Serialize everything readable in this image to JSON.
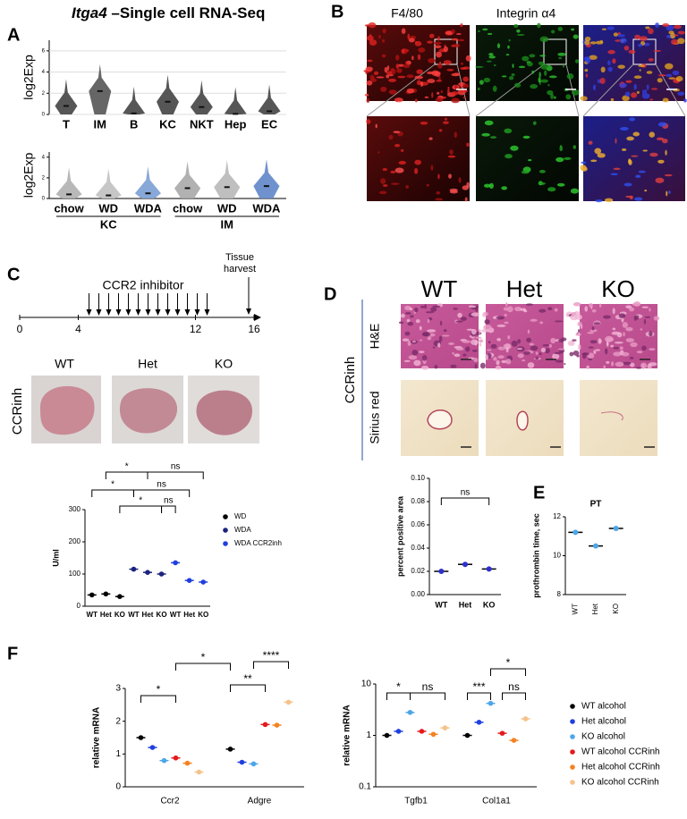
{
  "panel_labels": [
    "A",
    "B",
    "C",
    "D",
    "E",
    "F"
  ],
  "panel_a": {
    "gene": "Itga4",
    "title_rest": " –Single cell RNA-Seq"
  },
  "panel_b": {
    "stains": [
      "F4/80",
      "Integrin α4"
    ]
  },
  "panel_c": {
    "timeline_label": "CCR2 inhibitor",
    "harvest_label": [
      "Tissue",
      "harvest"
    ],
    "xlim": [
      0,
      16
    ],
    "xticks": [
      0,
      4,
      12,
      16
    ],
    "genotypes": [
      "WT",
      "Het",
      "KO"
    ],
    "row_label": "CCRinh"
  },
  "panel_d": {
    "genotypes": [
      "WT",
      "Het",
      "KO"
    ],
    "row_group": "CCRinh",
    "rows": [
      "H&E",
      "Sirius red"
    ]
  },
  "chart_data": [
    {
      "type": "violin",
      "ylabel": "log2Exp",
      "categories": [
        "T",
        "IM",
        "B",
        "KC",
        "NKT",
        "Hep",
        "EC"
      ],
      "values": [
        0.8,
        2.2,
        0.1,
        1.2,
        0.7,
        0.05,
        0.3
      ],
      "colors": [
        "#444444",
        "#555555",
        "#444444",
        "#444444",
        "#444444",
        "#444444",
        "#444444"
      ],
      "ylim": [
        0,
        7
      ],
      "yticks": [
        0,
        2,
        4,
        6
      ],
      "grid": true
    },
    {
      "type": "violin",
      "ylabel": "log2Exp",
      "categories": [
        "chow",
        "WD",
        "WDA",
        "chow",
        "WD",
        "WDA"
      ],
      "groups": [
        "KC",
        "IM"
      ],
      "values": [
        0.4,
        0.3,
        0.5,
        1.0,
        1.1,
        1.2
      ],
      "colors": [
        "#b0b0b0",
        "#c0c0c0",
        "#7b9fd4",
        "#a8a8a8",
        "#b8b8b8",
        "#5f86c9"
      ],
      "ylim": [
        0,
        4.5
      ],
      "yticks": [
        0,
        2,
        4
      ],
      "grid": false
    },
    {
      "type": "dot_series",
      "ylabel": "U/ml",
      "categories": [
        "WT",
        "Het",
        "KO"
      ],
      "series": [
        {
          "name": "WD",
          "color": "#000000",
          "values": [
            35,
            38,
            30
          ]
        },
        {
          "name": "WDA",
          "color": "#1a237e",
          "values": [
            115,
            105,
            100
          ]
        },
        {
          "name": "WDA CCR2inh",
          "color": "#1f3fe0",
          "values": [
            135,
            80,
            75
          ]
        }
      ],
      "ylim": [
        0,
        300
      ],
      "yticks": [
        0,
        100,
        200,
        300
      ],
      "significance": [
        "*",
        "ns",
        "*",
        "ns",
        "*",
        "ns"
      ]
    },
    {
      "type": "dot",
      "ylabel": "percent positive area",
      "categories": [
        "WT",
        "Het",
        "KO"
      ],
      "values": [
        0.02,
        0.026,
        0.022
      ],
      "color": "#2f2fd0",
      "ylim": [
        0,
        0.1
      ],
      "yticks": [
        {
          "value": 0,
          "label": "0.00"
        },
        {
          "value": 0.02,
          "label": "0.02"
        },
        {
          "value": 0.04,
          "label": "0.04"
        },
        {
          "value": 0.06,
          "label": "0.06"
        },
        {
          "value": 0.08,
          "label": "0.08"
        },
        {
          "value": 0.1,
          "label": "0.10"
        }
      ],
      "significance": [
        "ns"
      ]
    },
    {
      "type": "dot",
      "title": "PT",
      "ylabel": "prothrombin time, sec",
      "categories": [
        "WT",
        "Het",
        "KO"
      ],
      "values": [
        11.2,
        10.5,
        11.4
      ],
      "color": "#4da6e8",
      "ylim": [
        8,
        12
      ],
      "yticks": [
        8,
        10,
        12
      ]
    },
    {
      "type": "dot_series",
      "ylabel": "relative mRNA",
      "categories": [
        "Ccr2",
        "Adgre"
      ],
      "series": [
        {
          "name": "WT alcohol",
          "color": "#000000",
          "values": [
            1.5,
            1.15
          ]
        },
        {
          "name": "Het alcohol",
          "color": "#1f3fe0",
          "values": [
            1.2,
            0.75
          ]
        },
        {
          "name": "KO alcohol",
          "color": "#4da6e8",
          "values": [
            0.8,
            0.7
          ]
        },
        {
          "name": "WT alcohol CCRinh",
          "color": "#e41a1c",
          "values": [
            0.88,
            1.9
          ]
        },
        {
          "name": "Het alcohol CCRinh",
          "color": "#f58220",
          "values": [
            0.72,
            1.88
          ]
        },
        {
          "name": "KO alcohol CCRinh",
          "color": "#f5c28a",
          "values": [
            0.45,
            2.58
          ]
        }
      ],
      "ylim": [
        0,
        3
      ],
      "yticks": [
        0,
        1,
        2,
        3
      ],
      "significance": [
        "*",
        "*",
        "**",
        "****"
      ]
    },
    {
      "type": "dot_series",
      "ylabel": "relative mRNA",
      "log_scale": true,
      "categories": [
        "Tgfb1",
        "Col1a1"
      ],
      "series": [
        {
          "name": "WT alcohol",
          "color": "#000000",
          "values": [
            1.0,
            1.0
          ]
        },
        {
          "name": "Het alcohol",
          "color": "#1f3fe0",
          "values": [
            1.2,
            1.8
          ]
        },
        {
          "name": "KO alcohol",
          "color": "#4da6e8",
          "values": [
            2.8,
            4.2
          ]
        },
        {
          "name": "WT alcohol CCRinh",
          "color": "#e41a1c",
          "values": [
            1.2,
            1.1
          ]
        },
        {
          "name": "Het alcohol CCRinh",
          "color": "#f58220",
          "values": [
            1.05,
            0.8
          ]
        },
        {
          "name": "KO alcohol CCRinh",
          "color": "#f5c28a",
          "values": [
            1.4,
            2.1
          ]
        }
      ],
      "ylim": [
        0.1,
        10
      ],
      "yticks": [
        0.1,
        1,
        10
      ],
      "significance": [
        "*",
        "ns",
        "***",
        "ns",
        "*"
      ]
    }
  ]
}
